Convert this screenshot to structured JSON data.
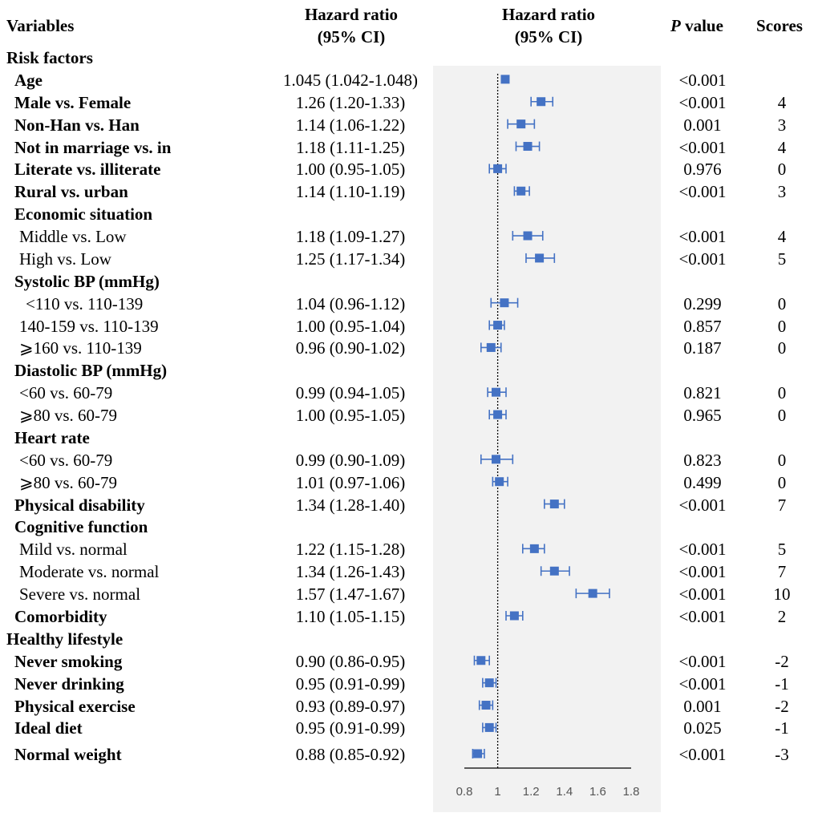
{
  "header": {
    "variables": "Variables",
    "hr_line1": "Hazard ratio",
    "hr_line2": "(95% CI)",
    "plot_line1": "Hazard ratio",
    "plot_line2": "(95% CI)",
    "p_italic": "P",
    "p_rest": " value",
    "scores": "Scores"
  },
  "rows": [
    {
      "label": "Risk factors",
      "level": 0,
      "bold": true
    },
    {
      "label": "Age",
      "level": 1,
      "bold": true,
      "hr_text": "1.045 (1.042-1.048)",
      "p": "<0.001",
      "score": ""
    },
    {
      "label": "Male vs. Female",
      "level": 1,
      "bold": true,
      "hr_text": "1.26 (1.20-1.33)",
      "p": "<0.001",
      "score": "4"
    },
    {
      "label": "Non-Han vs. Han",
      "level": 1,
      "bold": true,
      "hr_text": "1.14 (1.06-1.22)",
      "p": "0.001",
      "score": "3"
    },
    {
      "label": "Not in marriage vs. in",
      "level": 1,
      "bold": true,
      "hr_text": "1.18 (1.11-1.25)",
      "p": "<0.001",
      "score": "4"
    },
    {
      "label": "Literate vs. illiterate",
      "level": 1,
      "bold": true,
      "hr_text": "1.00 (0.95-1.05)",
      "p": "0.976",
      "score": "0"
    },
    {
      "label": "Rural vs. urban",
      "level": 1,
      "bold": true,
      "hr_text": "1.14 (1.10-1.19)",
      "p": "<0.001",
      "score": "3"
    },
    {
      "label": "Economic situation",
      "level": 1,
      "bold": true
    },
    {
      "label": "Middle vs. Low",
      "level": 2,
      "bold": false,
      "hr_text": "1.18 (1.09-1.27)",
      "p": "<0.001",
      "score": "4"
    },
    {
      "label": "High vs. Low",
      "level": 2,
      "bold": false,
      "hr_text": "1.25 (1.17-1.34)",
      "p": "<0.001",
      "score": "5"
    },
    {
      "label": "Systolic BP (mmHg)",
      "level": 1,
      "bold": true
    },
    {
      "label": "<110 vs. 110-139",
      "level": 3,
      "bold": false,
      "hr_text": "1.04 (0.96-1.12)",
      "p": "0.299",
      "score": "0"
    },
    {
      "label": "140-159 vs. 110-139",
      "level": 2,
      "bold": false,
      "hr_text": "1.00 (0.95-1.04)",
      "p": "0.857",
      "score": "0"
    },
    {
      "label": "⩾160 vs. 110-139",
      "level": 2,
      "bold": false,
      "hr_text": "0.96 (0.90-1.02)",
      "p": "0.187",
      "score": "0"
    },
    {
      "label": "Diastolic BP (mmHg)",
      "level": 1,
      "bold": true
    },
    {
      "label": "<60 vs. 60-79",
      "level": 2,
      "bold": false,
      "hr_text": "0.99 (0.94-1.05)",
      "p": "0.821",
      "score": "0"
    },
    {
      "label": "⩾80 vs. 60-79",
      "level": 2,
      "bold": false,
      "hr_text": "1.00 (0.95-1.05)",
      "p": "0.965",
      "score": "0"
    },
    {
      "label": "Heart rate",
      "level": 1,
      "bold": true
    },
    {
      "label": "<60 vs. 60-79",
      "level": 2,
      "bold": false,
      "hr_text": "0.99 (0.90-1.09)",
      "p": "0.823",
      "score": "0"
    },
    {
      "label": "⩾80 vs. 60-79",
      "level": 2,
      "bold": false,
      "hr_text": "1.01 (0.97-1.06)",
      "p": "0.499",
      "score": "0"
    },
    {
      "label": "Physical disability",
      "level": 1,
      "bold": true,
      "hr_text": "1.34 (1.28-1.40)",
      "p": "<0.001",
      "score": "7"
    },
    {
      "label": "Cognitive function",
      "level": 1,
      "bold": true
    },
    {
      "label": "Mild vs. normal",
      "level": 2,
      "bold": false,
      "hr_text": "1.22 (1.15-1.28)",
      "p": "<0.001",
      "score": "5"
    },
    {
      "label": "Moderate vs. normal",
      "level": 2,
      "bold": false,
      "hr_text": "1.34 (1.26-1.43)",
      "p": "<0.001",
      "score": "7"
    },
    {
      "label": "Severe vs. normal",
      "level": 2,
      "bold": false,
      "hr_text": "1.57 (1.47-1.67)",
      "p": "<0.001",
      "score": "10"
    },
    {
      "label": "Comorbidity",
      "level": 1,
      "bold": true,
      "hr_text": "1.10 (1.05-1.15)",
      "p": "<0.001",
      "score": "2"
    },
    {
      "label": "Healthy lifestyle",
      "level": 0,
      "bold": true
    },
    {
      "label": "Never smoking",
      "level": 1,
      "bold": true,
      "hr_text": "0.90 (0.86-0.95)",
      "p": "<0.001",
      "score": "-2"
    },
    {
      "label": "Never drinking",
      "level": 1,
      "bold": true,
      "hr_text": "0.95 (0.91-0.99)",
      "p": "<0.001",
      "score": "-1"
    },
    {
      "label": "Physical exercise",
      "level": 1,
      "bold": true,
      "hr_text": "0.93 (0.89-0.97)",
      "p": "0.001",
      "score": "-2"
    },
    {
      "label": "Ideal diet",
      "level": 1,
      "bold": true,
      "hr_text": "0.95 (0.91-0.99)",
      "p": "0.025",
      "score": "-1"
    },
    {
      "label": "Normal weight",
      "level": 1,
      "bold": true,
      "hr_text": "0.88 (0.85-0.92)",
      "p": "<0.001",
      "score": "-3"
    }
  ],
  "chart_data": {
    "type": "forest",
    "title": "Hazard ratio (95% CI)",
    "xlim": [
      0.8,
      1.8
    ],
    "xticks": [
      "0.8",
      "1",
      "1.2",
      "1.4",
      "1.6",
      "1.8"
    ],
    "reference_line": 1,
    "marker_color": "#4472c4",
    "estimates": [
      {
        "name": "Age",
        "hr": 1.045,
        "lo": 1.042,
        "hi": 1.048
      },
      {
        "name": "Male vs. Female",
        "hr": 1.26,
        "lo": 1.2,
        "hi": 1.33
      },
      {
        "name": "Non-Han vs. Han",
        "hr": 1.14,
        "lo": 1.06,
        "hi": 1.22
      },
      {
        "name": "Not in marriage vs. in",
        "hr": 1.18,
        "lo": 1.11,
        "hi": 1.25
      },
      {
        "name": "Literate vs. illiterate",
        "hr": 1.0,
        "lo": 0.95,
        "hi": 1.05
      },
      {
        "name": "Rural vs. urban",
        "hr": 1.14,
        "lo": 1.1,
        "hi": 1.19
      },
      {
        "name": "Middle vs. Low",
        "hr": 1.18,
        "lo": 1.09,
        "hi": 1.27
      },
      {
        "name": "High vs. Low",
        "hr": 1.25,
        "lo": 1.17,
        "hi": 1.34
      },
      {
        "name": "SBP <110 vs. 110-139",
        "hr": 1.04,
        "lo": 0.96,
        "hi": 1.12
      },
      {
        "name": "SBP 140-159 vs. 110-139",
        "hr": 1.0,
        "lo": 0.95,
        "hi": 1.04
      },
      {
        "name": "SBP >=160 vs. 110-139",
        "hr": 0.96,
        "lo": 0.9,
        "hi": 1.02
      },
      {
        "name": "DBP <60 vs. 60-79",
        "hr": 0.99,
        "lo": 0.94,
        "hi": 1.05
      },
      {
        "name": "DBP >=80 vs. 60-79",
        "hr": 1.0,
        "lo": 0.95,
        "hi": 1.05
      },
      {
        "name": "HR <60 vs. 60-79",
        "hr": 0.99,
        "lo": 0.9,
        "hi": 1.09
      },
      {
        "name": "HR >=80 vs. 60-79",
        "hr": 1.01,
        "lo": 0.97,
        "hi": 1.06
      },
      {
        "name": "Physical disability",
        "hr": 1.34,
        "lo": 1.28,
        "hi": 1.4
      },
      {
        "name": "Mild vs. normal",
        "hr": 1.22,
        "lo": 1.15,
        "hi": 1.28
      },
      {
        "name": "Moderate vs. normal",
        "hr": 1.34,
        "lo": 1.26,
        "hi": 1.43
      },
      {
        "name": "Severe vs. normal",
        "hr": 1.57,
        "lo": 1.47,
        "hi": 1.67
      },
      {
        "name": "Comorbidity",
        "hr": 1.1,
        "lo": 1.05,
        "hi": 1.15
      },
      {
        "name": "Never smoking",
        "hr": 0.9,
        "lo": 0.86,
        "hi": 0.95
      },
      {
        "name": "Never drinking",
        "hr": 0.95,
        "lo": 0.91,
        "hi": 0.99
      },
      {
        "name": "Physical exercise",
        "hr": 0.93,
        "lo": 0.89,
        "hi": 0.97
      },
      {
        "name": "Ideal diet",
        "hr": 0.95,
        "lo": 0.91,
        "hi": 0.99
      },
      {
        "name": "Normal weight",
        "hr": 0.88,
        "lo": 0.85,
        "hi": 0.92
      }
    ]
  }
}
